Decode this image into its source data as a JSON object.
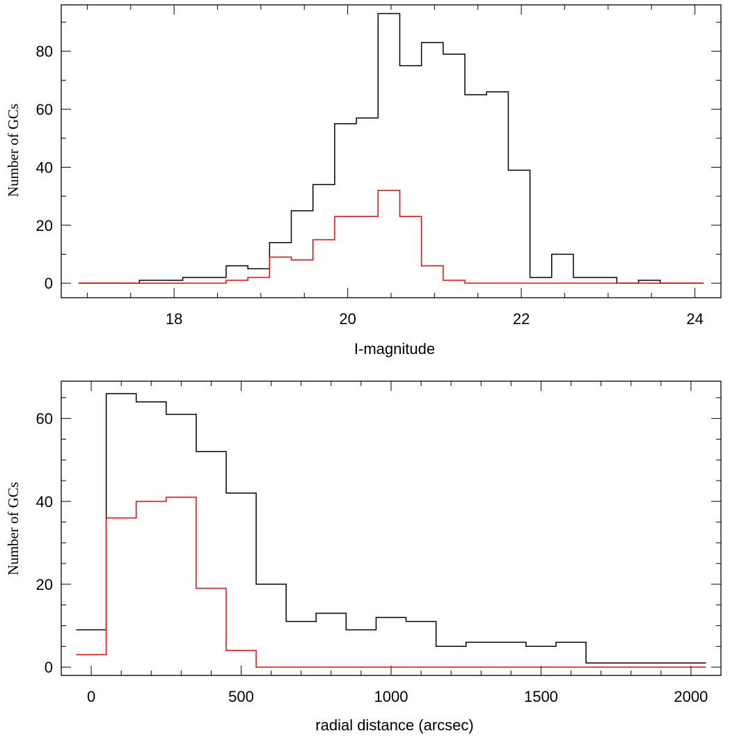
{
  "chart_data": [
    {
      "type": "line",
      "step": "histogram",
      "title": "",
      "xlabel": "I-magnitude",
      "ylabel": "Number of GCs",
      "xlim": [
        16.7,
        24.3
      ],
      "ylim": [
        -5,
        96
      ],
      "x_ticks": [
        18,
        20,
        22,
        24
      ],
      "y_ticks": [
        0,
        20,
        40,
        60,
        80
      ],
      "x_minor_step": 0.5,
      "y_minor_step": 10,
      "grid": false,
      "legend": "none",
      "series": [
        {
          "color": "#000000",
          "bin_edges": [
            16.9,
            17.1,
            17.35,
            17.6,
            17.85,
            18.1,
            18.35,
            18.6,
            18.85,
            19.1,
            19.35,
            19.6,
            19.85,
            20.1,
            20.35,
            20.6,
            20.85,
            21.1,
            21.35,
            21.6,
            21.85,
            22.1,
            22.35,
            22.6,
            22.85,
            23.1,
            23.35,
            23.6,
            23.85,
            24.1
          ],
          "values": [
            0,
            0,
            0,
            1,
            1,
            2,
            2,
            6,
            5,
            14,
            25,
            34,
            55,
            57,
            93,
            75,
            83,
            79,
            65,
            66,
            39,
            2,
            10,
            2,
            2,
            0,
            1,
            0,
            0
          ]
        },
        {
          "color": "#ff0000",
          "bin_edges": [
            16.9,
            17.1,
            17.35,
            17.6,
            17.85,
            18.1,
            18.35,
            18.6,
            18.85,
            19.1,
            19.35,
            19.6,
            19.85,
            20.1,
            20.35,
            20.6,
            20.85,
            21.1,
            21.35,
            21.6,
            21.85,
            22.1,
            22.35,
            22.6,
            22.85,
            23.1,
            23.35,
            23.6,
            23.85,
            24.1
          ],
          "values": [
            0,
            0,
            0,
            0,
            0,
            0,
            0,
            1,
            2,
            9,
            8,
            15,
            23,
            23,
            32,
            23,
            6,
            1,
            0,
            0,
            0,
            0,
            0,
            0,
            0,
            0,
            0,
            0,
            0
          ]
        }
      ]
    },
    {
      "type": "line",
      "step": "histogram",
      "title": "",
      "xlabel": "radial distance (arcsec)",
      "ylabel": "Number of GCs",
      "xlim": [
        -100,
        2100
      ],
      "ylim": [
        -2,
        69
      ],
      "x_ticks": [
        0,
        500,
        1000,
        1500,
        2000
      ],
      "y_ticks": [
        0,
        20,
        40,
        60
      ],
      "x_minor_step": 100,
      "y_minor_step": 5,
      "grid": false,
      "legend": "none",
      "series": [
        {
          "color": "#000000",
          "bin_edges": [
            -50,
            50,
            150,
            250,
            350,
            450,
            550,
            650,
            750,
            850,
            950,
            1050,
            1150,
            1250,
            1350,
            1450,
            1550,
            1650,
            1750,
            1850,
            1950,
            2050
          ],
          "values": [
            9,
            66,
            64,
            61,
            52,
            42,
            20,
            11,
            13,
            9,
            12,
            11,
            5,
            6,
            6,
            5,
            6,
            1,
            1,
            1,
            1
          ]
        },
        {
          "color": "#ff0000",
          "bin_edges": [
            -50,
            50,
            150,
            250,
            350,
            450,
            550,
            650,
            750,
            850,
            950,
            1050,
            1150,
            1250,
            1350,
            1450,
            1550,
            1650,
            1750,
            1850,
            1950,
            2050
          ],
          "values": [
            3,
            36,
            40,
            41,
            19,
            4,
            0,
            0,
            0,
            0,
            0,
            0,
            0,
            0,
            0,
            0,
            0,
            0,
            0,
            0,
            0
          ]
        }
      ]
    }
  ]
}
